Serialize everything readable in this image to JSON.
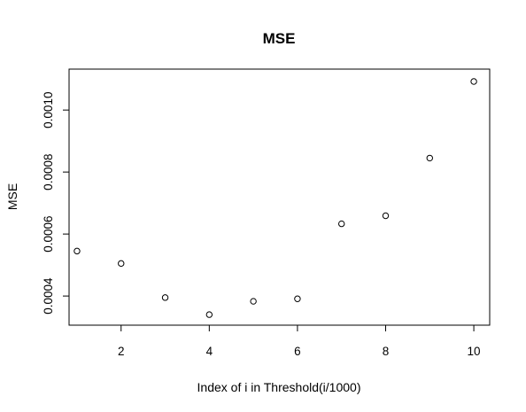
{
  "chart_data": {
    "type": "scatter",
    "title": "MSE",
    "xlabel": "Index of i in Threshold(i/1000)",
    "ylabel": "MSE",
    "x": [
      1,
      2,
      3,
      4,
      5,
      6,
      7,
      8,
      9,
      10
    ],
    "y": [
      0.000545,
      0.000505,
      0.000395,
      0.00034,
      0.000383,
      0.000391,
      0.000633,
      0.000659,
      0.000845,
      0.001092
    ],
    "xlim": [
      0.82,
      10.36
    ],
    "ylim": [
      0.000306,
      0.001132
    ],
    "x_ticks": [
      2,
      4,
      6,
      8,
      10
    ],
    "x_tick_labels": [
      "2",
      "4",
      "6",
      "8",
      "10"
    ],
    "y_ticks": [
      0.0004,
      0.0006,
      0.0008,
      0.001
    ],
    "y_tick_labels": [
      "0.0004",
      "0.0006",
      "0.0008",
      "0.0010"
    ],
    "grid": false,
    "marker": "open-circle",
    "color": "#000000"
  }
}
